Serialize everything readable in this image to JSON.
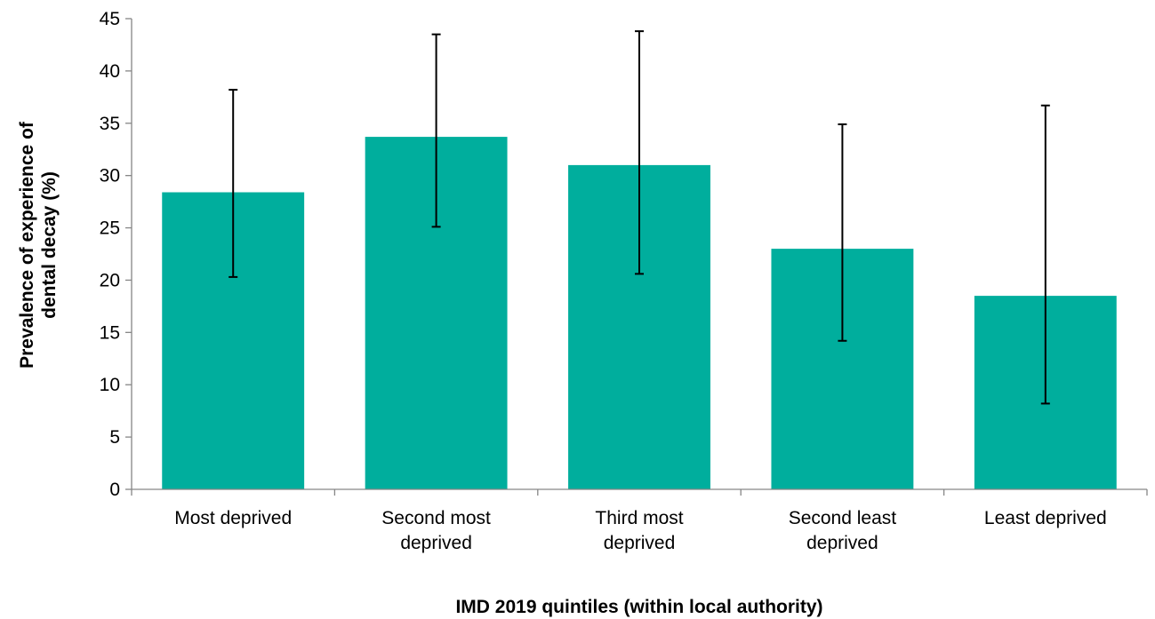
{
  "chart_data": {
    "type": "bar",
    "categories": [
      [
        "Most deprived"
      ],
      [
        "Second most",
        "deprived"
      ],
      [
        "Third most",
        "deprived"
      ],
      [
        "Second least",
        "deprived"
      ],
      [
        "Least deprived"
      ]
    ],
    "values": [
      28.4,
      33.7,
      31.0,
      23.0,
      18.5
    ],
    "error_low": [
      20.3,
      25.1,
      20.6,
      14.2,
      8.2
    ],
    "error_high": [
      38.2,
      43.5,
      43.8,
      34.9,
      36.7
    ],
    "bar_color": "#00AE9D",
    "xlabel": "IMD 2019 quintiles (within local authority)",
    "ylabel": [
      "Prevalence of experience of",
      "dental decay (%)"
    ],
    "ylim": [
      0,
      45
    ],
    "yticks": [
      0,
      5,
      10,
      15,
      20,
      25,
      30,
      35,
      40,
      45
    ],
    "grid": false,
    "legend": "none"
  }
}
